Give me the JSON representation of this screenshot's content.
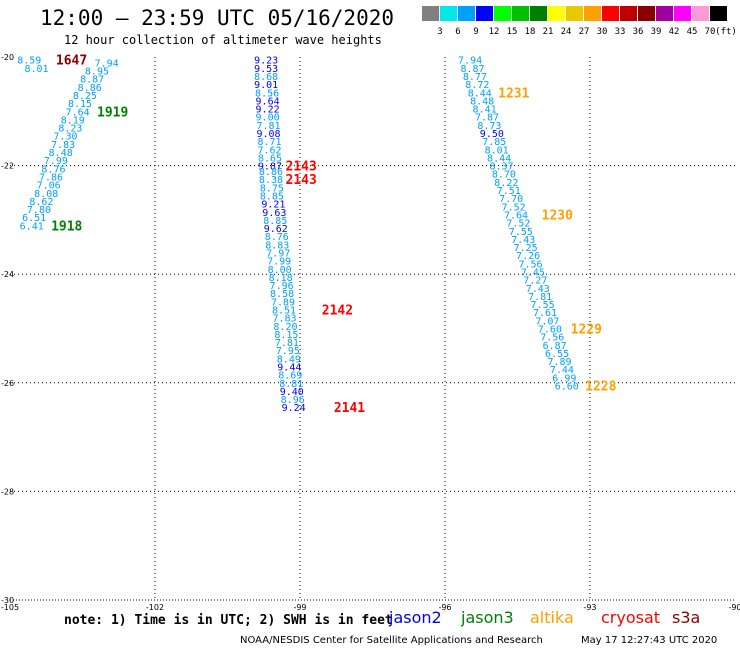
{
  "header": {
    "title": "12:00 — 23:59 UTC 05/16/2020",
    "subtitle": "12 hour collection of altimeter wave heights"
  },
  "color_scale": {
    "labels": [
      "3",
      "6",
      "9",
      "12",
      "15",
      "18",
      "21",
      "24",
      "27",
      "30",
      "33",
      "36",
      "39",
      "42",
      "45",
      "70"
    ],
    "unit": "(ft)",
    "colors": [
      "#808080",
      "#00e8e8",
      "#00a0ff",
      "#0000ff",
      "#00ff00",
      "#00c000",
      "#008000",
      "#ffff00",
      "#e8c800",
      "#ffa000",
      "#ff0000",
      "#c00000",
      "#8b0000",
      "#a000a0",
      "#ff00ff",
      "#ff9ad8",
      "#000000"
    ]
  },
  "axes": {
    "lon_labels": [
      "-105",
      "-102",
      "-99",
      "-96",
      "-93",
      "-90"
    ],
    "lat_labels": [
      "-20",
      "-22",
      "-24",
      "-26",
      "-28",
      "-30"
    ]
  },
  "tracks": [
    {
      "name": "track-1",
      "obs": [
        {
          "v": "8.59",
          "lon": -104.85,
          "lat": -20.05,
          "c": "#00a0ff"
        },
        {
          "v": "8.01",
          "lon": -104.7,
          "lat": -20.2,
          "c": "#00a0ff"
        },
        {
          "v": "7.94",
          "lon": -103.25,
          "lat": -20.1,
          "c": "#00a0ff"
        },
        {
          "v": "8.95",
          "lon": -103.45,
          "lat": -20.25,
          "c": "#00a0ff"
        },
        {
          "v": "8.87",
          "lon": -103.55,
          "lat": -20.4,
          "c": "#00a0ff"
        },
        {
          "v": "8.86",
          "lon": -103.6,
          "lat": -20.55,
          "c": "#00a0ff"
        },
        {
          "v": "8.25",
          "lon": -103.7,
          "lat": -20.7,
          "c": "#00a0ff"
        },
        {
          "v": "8.15",
          "lon": -103.8,
          "lat": -20.85,
          "c": "#00a0ff"
        },
        {
          "v": "7.64",
          "lon": -103.85,
          "lat": -21.0,
          "c": "#00a0ff"
        },
        {
          "v": "8.19",
          "lon": -103.95,
          "lat": -21.15,
          "c": "#00a0ff"
        },
        {
          "v": "8.23",
          "lon": -104.0,
          "lat": -21.3,
          "c": "#00a0ff"
        },
        {
          "v": "7.30",
          "lon": -104.1,
          "lat": -21.45,
          "c": "#00a0ff"
        },
        {
          "v": "7.83",
          "lon": -104.15,
          "lat": -21.6,
          "c": "#00a0ff"
        },
        {
          "v": "8.48",
          "lon": -104.2,
          "lat": -21.75,
          "c": "#00a0ff"
        },
        {
          "v": "7.99",
          "lon": -104.3,
          "lat": -21.9,
          "c": "#00a0ff"
        },
        {
          "v": "8.76",
          "lon": -104.35,
          "lat": -22.05,
          "c": "#00a0ff"
        },
        {
          "v": "7.86",
          "lon": -104.4,
          "lat": -22.2,
          "c": "#00a0ff"
        },
        {
          "v": "7.06",
          "lon": -104.45,
          "lat": -22.35,
          "c": "#00a0ff"
        },
        {
          "v": "8.08",
          "lon": -104.5,
          "lat": -22.5,
          "c": "#00a0ff"
        },
        {
          "v": "8.62",
          "lon": -104.6,
          "lat": -22.65,
          "c": "#00a0ff"
        },
        {
          "v": "7.80",
          "lon": -104.65,
          "lat": -22.8,
          "c": "#00a0ff"
        },
        {
          "v": "6.51",
          "lon": -104.75,
          "lat": -22.95,
          "c": "#00a0ff"
        },
        {
          "v": "6.41",
          "lon": -104.8,
          "lat": -23.1,
          "c": "#00a0ff"
        }
      ]
    },
    {
      "name": "track-2",
      "obs": [
        {
          "v": "9.23",
          "lon": -99.95,
          "lat": -20.05,
          "c": "#0000ff"
        },
        {
          "v": "9.53",
          "lon": -99.95,
          "lat": -20.2,
          "c": "#0000ff"
        },
        {
          "v": "8.68",
          "lon": -99.95,
          "lat": -20.35,
          "c": "#00a0ff"
        },
        {
          "v": "9.01",
          "lon": -99.95,
          "lat": -20.5,
          "c": "#0000ff"
        },
        {
          "v": "8.56",
          "lon": -99.93,
          "lat": -20.65,
          "c": "#00a0ff"
        },
        {
          "v": "9.64",
          "lon": -99.92,
          "lat": -20.8,
          "c": "#0000ff"
        },
        {
          "v": "9.22",
          "lon": -99.92,
          "lat": -20.95,
          "c": "#0000ff"
        },
        {
          "v": "9.00",
          "lon": -99.92,
          "lat": -21.1,
          "c": "#00a0ff"
        },
        {
          "v": "7.81",
          "lon": -99.9,
          "lat": -21.25,
          "c": "#00a0ff"
        },
        {
          "v": "9.08",
          "lon": -99.9,
          "lat": -21.4,
          "c": "#0000ff"
        },
        {
          "v": "8.71",
          "lon": -99.88,
          "lat": -21.55,
          "c": "#00a0ff"
        },
        {
          "v": "7.62",
          "lon": -99.88,
          "lat": -21.7,
          "c": "#00a0ff"
        },
        {
          "v": "8.65",
          "lon": -99.87,
          "lat": -21.85,
          "c": "#00a0ff"
        },
        {
          "v": "9.87",
          "lon": -99.87,
          "lat": -22.0,
          "c": "#0000ff"
        },
        {
          "v": "8.86",
          "lon": -99.85,
          "lat": -22.1,
          "c": "#00a0ff"
        },
        {
          "v": "8.38",
          "lon": -99.85,
          "lat": -22.25,
          "c": "#00a0ff"
        },
        {
          "v": "8.75",
          "lon": -99.83,
          "lat": -22.4,
          "c": "#00a0ff"
        },
        {
          "v": "8.85",
          "lon": -99.83,
          "lat": -22.55,
          "c": "#00a0ff"
        },
        {
          "v": "9.21",
          "lon": -99.8,
          "lat": -22.7,
          "c": "#0000ff"
        },
        {
          "v": "9.63",
          "lon": -99.78,
          "lat": -22.85,
          "c": "#0000ff"
        },
        {
          "v": "8.85",
          "lon": -99.76,
          "lat": -23.0,
          "c": "#00a0ff"
        },
        {
          "v": "9.62",
          "lon": -99.75,
          "lat": -23.15,
          "c": "#0000ff"
        },
        {
          "v": "8.76",
          "lon": -99.73,
          "lat": -23.3,
          "c": "#00a0ff"
        },
        {
          "v": "8.83",
          "lon": -99.72,
          "lat": -23.45,
          "c": "#00a0ff"
        },
        {
          "v": "7.97",
          "lon": -99.7,
          "lat": -23.6,
          "c": "#00a0ff"
        },
        {
          "v": "7.99",
          "lon": -99.68,
          "lat": -23.75,
          "c": "#00a0ff"
        },
        {
          "v": "8.00",
          "lon": -99.67,
          "lat": -23.9,
          "c": "#00a0ff"
        },
        {
          "v": "8.18",
          "lon": -99.65,
          "lat": -24.05,
          "c": "#00a0ff"
        },
        {
          "v": "7.96",
          "lon": -99.63,
          "lat": -24.2,
          "c": "#00a0ff"
        },
        {
          "v": "8.58",
          "lon": -99.62,
          "lat": -24.35,
          "c": "#00a0ff"
        },
        {
          "v": "7.89",
          "lon": -99.6,
          "lat": -24.5,
          "c": "#00a0ff"
        },
        {
          "v": "8.51",
          "lon": -99.58,
          "lat": -24.65,
          "c": "#00a0ff"
        },
        {
          "v": "7.83",
          "lon": -99.57,
          "lat": -24.8,
          "c": "#00a0ff"
        },
        {
          "v": "8.20",
          "lon": -99.55,
          "lat": -24.95,
          "c": "#00a0ff"
        },
        {
          "v": "8.15",
          "lon": -99.53,
          "lat": -25.1,
          "c": "#00a0ff"
        },
        {
          "v": "7.81",
          "lon": -99.52,
          "lat": -25.25,
          "c": "#00a0ff"
        },
        {
          "v": "7.95",
          "lon": -99.5,
          "lat": -25.4,
          "c": "#00a0ff"
        },
        {
          "v": "8.49",
          "lon": -99.48,
          "lat": -25.55,
          "c": "#00a0ff"
        },
        {
          "v": "9.44",
          "lon": -99.47,
          "lat": -25.7,
          "c": "#0000ff"
        },
        {
          "v": "8.69",
          "lon": -99.45,
          "lat": -25.85,
          "c": "#00a0ff"
        },
        {
          "v": "8.81",
          "lon": -99.43,
          "lat": -26.0,
          "c": "#00a0ff"
        },
        {
          "v": "9.40",
          "lon": -99.42,
          "lat": -26.15,
          "c": "#0000ff"
        },
        {
          "v": "8.96",
          "lon": -99.4,
          "lat": -26.3,
          "c": "#00a0ff"
        },
        {
          "v": "9.24",
          "lon": -99.38,
          "lat": -26.45,
          "c": "#0000ff"
        }
      ]
    },
    {
      "name": "track-3",
      "obs": [
        {
          "v": "7.94",
          "lon": -95.73,
          "lat": -20.05,
          "c": "#00a0ff"
        },
        {
          "v": "8.87",
          "lon": -95.68,
          "lat": -20.2,
          "c": "#00a0ff"
        },
        {
          "v": "8.77",
          "lon": -95.63,
          "lat": -20.35,
          "c": "#00a0ff"
        },
        {
          "v": "8.72",
          "lon": -95.58,
          "lat": -20.5,
          "c": "#00a0ff"
        },
        {
          "v": "8.44",
          "lon": -95.53,
          "lat": -20.65,
          "c": "#00a0ff"
        },
        {
          "v": "8.48",
          "lon": -95.48,
          "lat": -20.8,
          "c": "#00a0ff"
        },
        {
          "v": "8.41",
          "lon": -95.43,
          "lat": -20.95,
          "c": "#00a0ff"
        },
        {
          "v": "7.87",
          "lon": -95.38,
          "lat": -21.1,
          "c": "#00a0ff"
        },
        {
          "v": "8.73",
          "lon": -95.33,
          "lat": -21.25,
          "c": "#00a0ff"
        },
        {
          "v": "9.50",
          "lon": -95.28,
          "lat": -21.4,
          "c": "#0000ff"
        },
        {
          "v": "7.85",
          "lon": -95.23,
          "lat": -21.55,
          "c": "#00a0ff"
        },
        {
          "v": "8.01",
          "lon": -95.18,
          "lat": -21.7,
          "c": "#00a0ff"
        },
        {
          "v": "8.44",
          "lon": -95.13,
          "lat": -21.85,
          "c": "#00a0ff"
        },
        {
          "v": "8.37",
          "lon": -95.08,
          "lat": -22.0,
          "c": "#00a0ff"
        },
        {
          "v": "8.70",
          "lon": -95.03,
          "lat": -22.15,
          "c": "#00a0ff"
        },
        {
          "v": "8.22",
          "lon": -94.98,
          "lat": -22.3,
          "c": "#00a0ff"
        },
        {
          "v": "7.51",
          "lon": -94.93,
          "lat": -22.45,
          "c": "#00a0ff"
        },
        {
          "v": "7.70",
          "lon": -94.88,
          "lat": -22.6,
          "c": "#00a0ff"
        },
        {
          "v": "7.52",
          "lon": -94.83,
          "lat": -22.75,
          "c": "#00a0ff"
        },
        {
          "v": "7.64",
          "lon": -94.78,
          "lat": -22.9,
          "c": "#00a0ff"
        },
        {
          "v": "7.52",
          "lon": -94.73,
          "lat": -23.05,
          "c": "#00a0ff"
        },
        {
          "v": "7.55",
          "lon": -94.68,
          "lat": -23.2,
          "c": "#00a0ff"
        },
        {
          "v": "7.43",
          "lon": -94.63,
          "lat": -23.35,
          "c": "#00a0ff"
        },
        {
          "v": "7.25",
          "lon": -94.58,
          "lat": -23.5,
          "c": "#00a0ff"
        },
        {
          "v": "7.26",
          "lon": -94.53,
          "lat": -23.65,
          "c": "#00a0ff"
        },
        {
          "v": "7.56",
          "lon": -94.48,
          "lat": -23.8,
          "c": "#00a0ff"
        },
        {
          "v": "7.45",
          "lon": -94.43,
          "lat": -23.95,
          "c": "#00a0ff"
        },
        {
          "v": "7.27",
          "lon": -94.38,
          "lat": -24.1,
          "c": "#00a0ff"
        },
        {
          "v": "7.43",
          "lon": -94.33,
          "lat": -24.25,
          "c": "#00a0ff"
        },
        {
          "v": "7.81",
          "lon": -94.28,
          "lat": -24.4,
          "c": "#00a0ff"
        },
        {
          "v": "7.55",
          "lon": -94.23,
          "lat": -24.55,
          "c": "#00a0ff"
        },
        {
          "v": "7.61",
          "lon": -94.18,
          "lat": -24.7,
          "c": "#00a0ff"
        },
        {
          "v": "7.07",
          "lon": -94.13,
          "lat": -24.85,
          "c": "#00a0ff"
        },
        {
          "v": "7.60",
          "lon": -94.08,
          "lat": -25.0,
          "c": "#00a0ff"
        },
        {
          "v": "7.56",
          "lon": -94.03,
          "lat": -25.15,
          "c": "#00a0ff"
        },
        {
          "v": "6.87",
          "lon": -93.98,
          "lat": -25.3,
          "c": "#00a0ff"
        },
        {
          "v": "6.55",
          "lon": -93.93,
          "lat": -25.45,
          "c": "#00a0ff"
        },
        {
          "v": "7.89",
          "lon": -93.88,
          "lat": -25.6,
          "c": "#00a0ff"
        },
        {
          "v": "7.44",
          "lon": -93.83,
          "lat": -25.75,
          "c": "#00a0ff"
        },
        {
          "v": "6.99",
          "lon": -93.78,
          "lat": -25.9,
          "c": "#00a0ff"
        },
        {
          "v": "6.60",
          "lon": -93.73,
          "lat": -26.05,
          "c": "#00a0ff"
        }
      ]
    }
  ],
  "time_markers": [
    {
      "t": "1647",
      "lon": -104.05,
      "lat": -20.05,
      "c": "#8b0000"
    },
    {
      "t": "1919",
      "lon": -103.2,
      "lat": -21.0,
      "c": "#008000"
    },
    {
      "t": "1918",
      "lon": -104.15,
      "lat": -23.1,
      "c": "#008000"
    },
    {
      "t": "2143",
      "lon": -99.3,
      "lat": -22.0,
      "c": "#ff0000"
    },
    {
      "t": "2143",
      "lon": -99.3,
      "lat": -22.25,
      "c": "#ff0000"
    },
    {
      "t": "2142",
      "lon": -98.55,
      "lat": -24.65,
      "c": "#ff0000"
    },
    {
      "t": "2141",
      "lon": -98.3,
      "lat": -26.45,
      "c": "#ff0000"
    },
    {
      "t": "1231",
      "lon": -94.9,
      "lat": -20.65,
      "c": "#ffa000"
    },
    {
      "t": "1230",
      "lon": -94.0,
      "lat": -22.9,
      "c": "#ffa000"
    },
    {
      "t": "1229",
      "lon": -93.4,
      "lat": -25.0,
      "c": "#ffa000"
    },
    {
      "t": "1228",
      "lon": -93.1,
      "lat": -26.05,
      "c": "#ffa000"
    }
  ],
  "footer": {
    "note": "note: 1) Time is in UTC; 2) SWH is in feet",
    "satellites": [
      {
        "name": "jason2",
        "color": "#0000ff"
      },
      {
        "name": "jason3",
        "color": "#008000"
      },
      {
        "name": "altika",
        "color": "#ffa000"
      },
      {
        "name": "cryosat",
        "color": "#ff0000"
      },
      {
        "name": "s3a",
        "color": "#8b0000"
      }
    ],
    "credit": "NOAA/NESDIS Center for Satellite Applications and Research",
    "timestamp": "May 17 12:27:43 UTC 2020"
  }
}
